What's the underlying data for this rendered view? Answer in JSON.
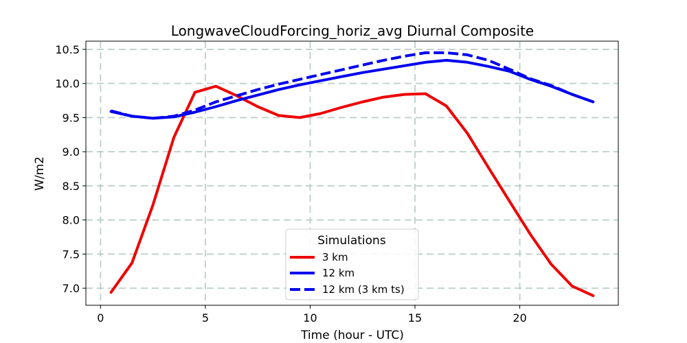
{
  "chart_data": {
    "type": "line",
    "title": "LongwaveCloudForcing_horiz_avg Diurnal Composite",
    "xlabel": "Time (hour - UTC)",
    "ylabel": "W/m2",
    "xlim": [
      -0.7,
      24.7
    ],
    "ylim": [
      6.75,
      10.62
    ],
    "x_ticks": [
      0,
      5,
      10,
      15,
      20
    ],
    "x_tick_labels": [
      "0",
      "5",
      "10",
      "15",
      "20"
    ],
    "y_ticks": [
      7.0,
      7.5,
      8.0,
      8.5,
      9.0,
      9.5,
      10.0,
      10.5
    ],
    "y_tick_labels": [
      "7.0",
      "7.5",
      "8.0",
      "8.5",
      "9.0",
      "9.5",
      "10.0",
      "10.5"
    ],
    "grid": true,
    "x": [
      0.5,
      1.5,
      2.5,
      3.5,
      4.5,
      5.5,
      6.5,
      7.5,
      8.5,
      9.5,
      10.5,
      11.5,
      12.5,
      13.5,
      14.5,
      15.5,
      16.5,
      17.5,
      18.5,
      19.5,
      20.5,
      21.5,
      22.5,
      23.5
    ],
    "series": [
      {
        "name": "3 km",
        "color": "#ee0000",
        "style": "solid",
        "values": [
          6.94,
          7.37,
          8.22,
          9.21,
          9.87,
          9.96,
          9.82,
          9.66,
          9.53,
          9.5,
          9.56,
          9.65,
          9.73,
          9.8,
          9.84,
          9.85,
          9.67,
          9.27,
          8.77,
          8.28,
          7.79,
          7.35,
          7.03,
          6.89
        ]
      },
      {
        "name": "12 km",
        "color": "#0000ee",
        "style": "solid",
        "values": [
          9.59,
          9.52,
          9.49,
          9.51,
          9.58,
          9.66,
          9.75,
          9.83,
          9.91,
          9.98,
          10.04,
          10.1,
          10.16,
          10.21,
          10.26,
          10.31,
          10.34,
          10.31,
          10.25,
          10.18,
          10.06,
          9.96,
          9.84,
          9.73
        ]
      },
      {
        "name": "12 km (3 km ts)",
        "color": "#0000ee",
        "style": "dashed",
        "values": [
          9.6,
          9.52,
          9.49,
          9.52,
          9.61,
          9.73,
          9.82,
          9.91,
          9.99,
          10.06,
          10.13,
          10.2,
          10.27,
          10.34,
          10.4,
          10.45,
          10.45,
          10.42,
          10.34,
          10.21,
          10.07,
          9.97,
          9.84,
          9.73
        ]
      }
    ],
    "legend": {
      "title": "Simulations",
      "placement": "lower-center"
    }
  }
}
